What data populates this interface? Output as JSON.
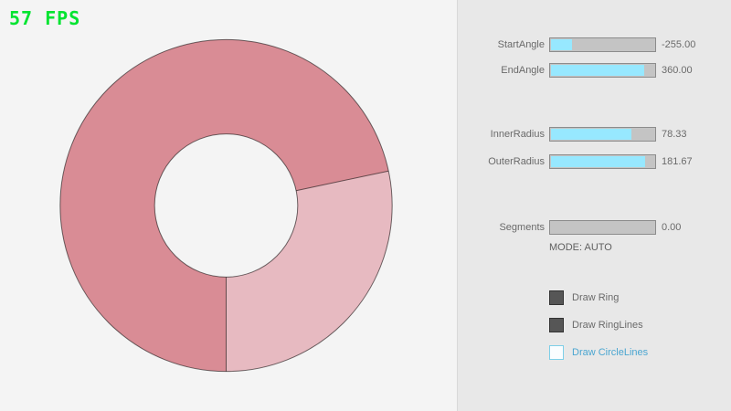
{
  "fps_label": "57 FPS",
  "colors": {
    "fps_green": "#00e430",
    "ring_dark": "#d98c95",
    "ring_light": "#e7bac1",
    "ring_outline": "rgba(0,0,0,0.55)",
    "slider_fill": "#97e8ff",
    "slider_track": "#c4c4c4",
    "accent_blue": "#4ba6d1"
  },
  "panel": {
    "sliders": [
      {
        "label": "StartAngle",
        "value": "-255.00",
        "fill_pct": 22
      },
      {
        "label": "EndAngle",
        "value": "360.00",
        "fill_pct": 90
      },
      {
        "label": "InnerRadius",
        "value": "78.33",
        "fill_pct": 78
      },
      {
        "label": "OuterRadius",
        "value": "181.67",
        "fill_pct": 91
      },
      {
        "label": "Segments",
        "value": "0.00",
        "fill_pct": 0
      }
    ],
    "mode_label": "MODE: AUTO",
    "checkboxes": [
      {
        "label": "Draw Ring",
        "checked": true
      },
      {
        "label": "Draw RingLines",
        "checked": true
      },
      {
        "label": "Draw CircleLines",
        "checked": false
      }
    ]
  }
}
